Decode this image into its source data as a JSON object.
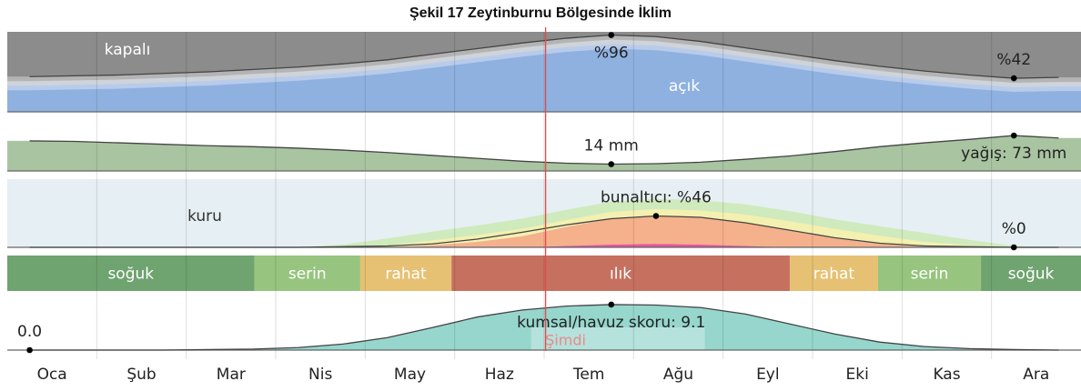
{
  "chart_data": {
    "type": "area",
    "title": "Şekil 17 Zeytinburnu Bölgesinde İklim",
    "categories": [
      "Oca",
      "Şub",
      "Mar",
      "Nis",
      "May",
      "Haz",
      "Tem",
      "Ağu",
      "Eyl",
      "Eki",
      "Kas",
      "Ara"
    ],
    "xlim": [
      0,
      365
    ],
    "now": {
      "label": "Şimdi",
      "day": 183,
      "color": "#e84a4a"
    },
    "cloud": {
      "ylim": [
        0,
        100
      ],
      "overcast_label": "kapalı",
      "clear_label": "açık",
      "color": "#8fb1e0",
      "values": [
        44,
        45,
        46,
        48,
        50,
        53,
        56,
        60,
        65,
        72,
        79,
        86,
        92,
        96,
        94,
        88,
        80,
        72,
        64,
        57,
        51,
        46,
        42,
        43
      ],
      "value_labels": [
        null,
        null,
        null,
        null,
        null,
        null,
        null,
        null,
        null,
        null,
        null,
        null,
        null,
        "%96",
        null,
        null,
        null,
        null,
        null,
        null,
        null,
        null,
        "%42",
        null
      ]
    },
    "precipitation": {
      "ylim": [
        0,
        90
      ],
      "color": "#a9c4a1",
      "values": [
        62,
        61,
        58,
        55,
        52,
        50,
        47,
        43,
        38,
        32,
        26,
        20,
        16,
        14,
        15,
        18,
        24,
        31,
        40,
        50,
        58,
        65,
        73,
        68
      ],
      "value_labels": [
        null,
        null,
        null,
        null,
        null,
        null,
        null,
        null,
        null,
        null,
        null,
        null,
        null,
        "14 mm",
        null,
        null,
        null,
        null,
        null,
        null,
        null,
        null,
        "yağış: 73 mm",
        null
      ]
    },
    "humidity": {
      "ylim": [
        0,
        100
      ],
      "dry_label": "kuru",
      "bands": [
        {
          "color": "#e8559c",
          "values": [
            0,
            0,
            0,
            0,
            0,
            0,
            0,
            0,
            0,
            0,
            0,
            0,
            2,
            4,
            5,
            4,
            2,
            0,
            0,
            0,
            0,
            0,
            0,
            0
          ]
        },
        {
          "color": "#f5b08c",
          "values": [
            0,
            0,
            0,
            0,
            0,
            0,
            0,
            0,
            0,
            3,
            8,
            16,
            28,
            38,
            41,
            40,
            34,
            24,
            13,
            5,
            1,
            0,
            0,
            0
          ]
        },
        {
          "color": "#f3f0b0",
          "values": [
            0,
            0,
            0,
            0,
            0,
            0,
            0,
            0,
            3,
            7,
            10,
            11,
            10,
            10,
            10,
            10,
            12,
            14,
            14,
            12,
            7,
            3,
            0,
            0
          ]
        },
        {
          "color": "#cfeabc",
          "values": [
            0,
            0,
            0,
            0,
            0,
            0,
            0,
            4,
            10,
            13,
            14,
            15,
            15,
            15,
            15,
            15,
            15,
            15,
            14,
            14,
            13,
            8,
            2,
            0
          ]
        }
      ],
      "values": [
        0,
        0,
        0,
        0,
        0,
        0,
        0,
        1,
        2,
        5,
        12,
        22,
        33,
        42,
        46,
        44,
        36,
        25,
        14,
        6,
        2,
        1,
        0,
        0
      ],
      "value_labels": [
        null,
        null,
        null,
        null,
        null,
        null,
        null,
        null,
        null,
        null,
        null,
        null,
        null,
        null,
        "bunaltıcı: %46",
        null,
        null,
        null,
        null,
        null,
        null,
        null,
        "%0",
        null
      ]
    },
    "temperature": {
      "segments": [
        {
          "label": "soğuk",
          "color": "#6fa36f",
          "start": 0,
          "end": 84
        },
        {
          "label": "serin",
          "color": "#97c47f",
          "start": 84,
          "end": 120
        },
        {
          "label": "rahat",
          "color": "#e6c173",
          "start": 120,
          "end": 151
        },
        {
          "label": "ılık",
          "color": "#c6705f",
          "start": 151,
          "end": 266
        },
        {
          "label": "rahat",
          "color": "#e6c173",
          "start": 266,
          "end": 296
        },
        {
          "label": "serin",
          "color": "#97c47f",
          "start": 296,
          "end": 331
        },
        {
          "label": "soğuk",
          "color": "#6fa36f",
          "start": 331,
          "end": 365
        }
      ]
    },
    "beach": {
      "ylim": [
        0,
        10
      ],
      "color": "#96d6cd",
      "values": [
        0.0,
        0,
        0,
        0,
        0.1,
        0.2,
        0.5,
        1.2,
        2.5,
        4.5,
        6.6,
        8.0,
        8.8,
        9.1,
        9.0,
        8.5,
        7.2,
        5.2,
        3.2,
        1.6,
        0.7,
        0.3,
        0.1,
        0
      ],
      "value_labels": [
        "0.0",
        null,
        null,
        null,
        null,
        null,
        null,
        null,
        null,
        null,
        null,
        null,
        null,
        "kumsal/havuz skoru: 9.1",
        null,
        null,
        null,
        null,
        null,
        null,
        null,
        null,
        null,
        null
      ]
    }
  }
}
